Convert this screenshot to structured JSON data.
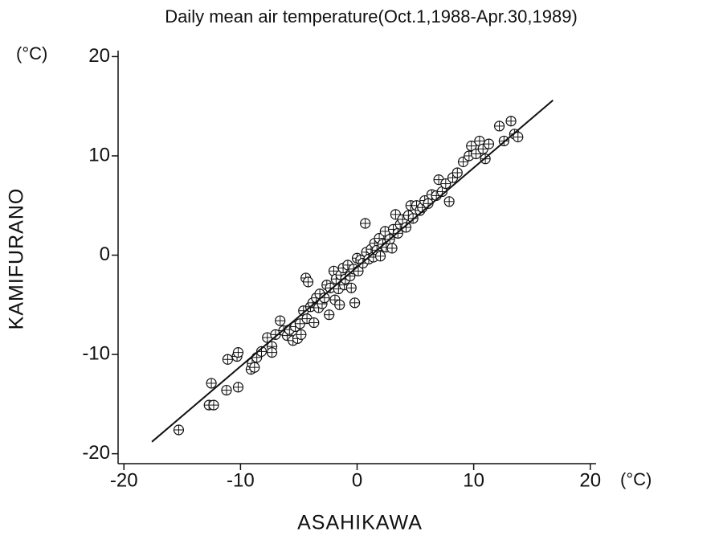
{
  "chart_data": {
    "type": "scatter",
    "title": "Daily mean air temperature(Oct.1,1988-Apr.30,1989)",
    "x_label": "ASAHIKAWA",
    "y_label": "KAMIFURANO",
    "x_unit": "(°C)",
    "y_unit": "(°C)",
    "xlim": [
      -20.5,
      20.5
    ],
    "ylim": [
      -21,
      20.6
    ],
    "xticks": [
      -20,
      -10,
      0,
      10,
      20
    ],
    "yticks": [
      -20,
      -10,
      0,
      10,
      20
    ],
    "grid": false,
    "series": [
      {
        "color": "#111111",
        "marker": "circle-plus",
        "x": [
          -15.3,
          -12.7,
          -12.3,
          -12.5,
          -11.2,
          -10.2,
          -11.1,
          -10.3,
          -10.2,
          -9.1,
          -9.0,
          -8.8,
          -8.6,
          -8.2,
          -7.7,
          -7.3,
          -7.3,
          -7.0,
          -6.6,
          -6.3,
          -6.0,
          -5.8,
          -5.5,
          -5.3,
          -5.1,
          -4.9,
          -4.8,
          -4.6,
          -4.4,
          -4.2,
          -4.3,
          -4.0,
          -3.8,
          -3.7,
          -3.5,
          -3.3,
          -3.2,
          -3.0,
          -2.8,
          -2.6,
          -2.4,
          -2.3,
          -2.0,
          -1.9,
          -1.8,
          -1.6,
          -1.5,
          -1.4,
          -1.2,
          -1.1,
          -1.0,
          -0.8,
          -0.6,
          -0.5,
          -0.3,
          -0.2,
          0,
          0.1,
          0.3,
          0.5,
          0.7,
          0.8,
          1.0,
          1.2,
          1.4,
          1.5,
          1.7,
          1.9,
          2.0,
          2.2,
          2.4,
          2.5,
          2.8,
          3.0,
          3.1,
          3.3,
          3.5,
          3.7,
          3.9,
          4.2,
          4.4,
          4.6,
          4.8,
          5.1,
          5.4,
          5.6,
          5.8,
          6.1,
          6.4,
          6.8,
          7.0,
          7.3,
          7.6,
          7.9,
          8.2,
          8.6,
          9.1,
          9.6,
          9.8,
          10.2,
          10.5,
          10.8,
          11.0,
          11.3,
          12.2,
          12.6,
          13.2,
          13.5,
          13.8
        ],
        "y": [
          -17.6,
          -15.1,
          -15.1,
          -12.9,
          -13.6,
          -13.3,
          -10.5,
          -10.2,
          -9.8,
          -11.5,
          -10.9,
          -11.3,
          -10.3,
          -9.7,
          -8.3,
          -9.2,
          -9.8,
          -8.0,
          -6.6,
          -7.6,
          -8.1,
          -7.5,
          -8.6,
          -7.2,
          -8.4,
          -6.9,
          -8.0,
          -5.6,
          -2.3,
          -2.7,
          -6.4,
          -5.2,
          -4.8,
          -6.8,
          -4.3,
          -5.3,
          -3.9,
          -4.9,
          -4.3,
          -3.0,
          -6.0,
          -3.3,
          -1.6,
          -4.5,
          -2.4,
          -3.4,
          -5.0,
          -2.0,
          -1.3,
          -3.0,
          -2.4,
          -1.0,
          -2.1,
          -3.3,
          -1.4,
          -4.8,
          -0.3,
          -1.6,
          -0.5,
          -0.8,
          3.2,
          0.3,
          -0.4,
          0.6,
          -0.2,
          1.2,
          0.5,
          1.7,
          -0.1,
          1.1,
          2.4,
          0.8,
          1.6,
          0.7,
          2.6,
          4.1,
          2.2,
          3.1,
          3.6,
          2.8,
          4.0,
          5.0,
          3.7,
          5.0,
          4.5,
          4.8,
          5.5,
          5.2,
          6.1,
          6.0,
          7.6,
          6.4,
          7.2,
          5.4,
          7.8,
          8.3,
          9.4,
          10.0,
          11.0,
          10.2,
          11.5,
          10.7,
          9.7,
          11.2,
          13.0,
          11.5,
          13.5,
          12.2,
          11.9
        ]
      },
      {
        "color": "#111111",
        "marker": "line",
        "x": [
          -17.6,
          16.8
        ],
        "y": [
          -18.8,
          15.6
        ]
      }
    ]
  }
}
